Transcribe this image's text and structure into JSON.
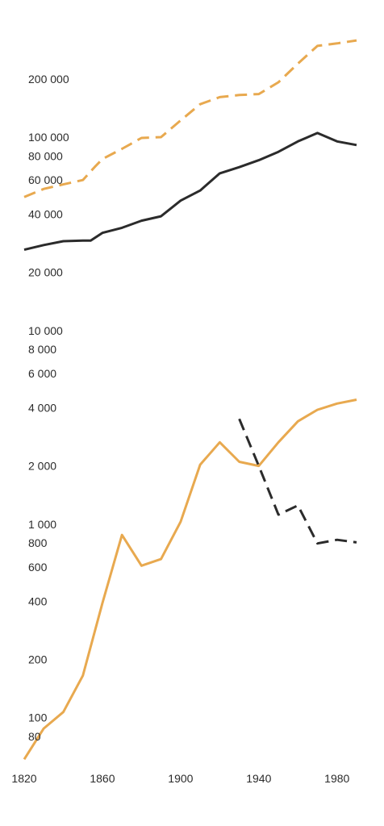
{
  "chart_data": {
    "type": "line",
    "title": "",
    "xlabel": "",
    "ylabel": "",
    "y_scale": "log",
    "xlim": [
      1820,
      1990
    ],
    "ylim": [
      60,
      300000
    ],
    "grid": false,
    "legend": "none",
    "x_ticks": [
      {
        "value": 1820,
        "label": "1820"
      },
      {
        "value": 1860,
        "label": "1860"
      },
      {
        "value": 1900,
        "label": "1900"
      },
      {
        "value": 1940,
        "label": "1940"
      },
      {
        "value": 1980,
        "label": "1980"
      }
    ],
    "y_ticks": [
      {
        "value": 80,
        "label": "80"
      },
      {
        "value": 100,
        "label": "100"
      },
      {
        "value": 200,
        "label": "200"
      },
      {
        "value": 400,
        "label": "400"
      },
      {
        "value": 600,
        "label": "600"
      },
      {
        "value": 800,
        "label": "800"
      },
      {
        "value": 1000,
        "label": "1 000"
      },
      {
        "value": 2000,
        "label": "2 000"
      },
      {
        "value": 4000,
        "label": "4 000"
      },
      {
        "value": 6000,
        "label": "6 000"
      },
      {
        "value": 8000,
        "label": "8 000"
      },
      {
        "value": 10000,
        "label": "10 000"
      },
      {
        "value": 20000,
        "label": "20 000"
      },
      {
        "value": 40000,
        "label": "40 000"
      },
      {
        "value": 60000,
        "label": "60 000"
      },
      {
        "value": 80000,
        "label": "80 000"
      },
      {
        "value": 100000,
        "label": "100 000"
      },
      {
        "value": 200000,
        "label": "200 000"
      }
    ],
    "series": [
      {
        "color": "#e8a94f",
        "dash": "dashed",
        "x": [
          1820,
          1830,
          1840,
          1850,
          1856,
          1860,
          1870,
          1880,
          1890,
          1900,
          1910,
          1920,
          1930,
          1940,
          1950,
          1960,
          1970,
          1980,
          1990
        ],
        "y": [
          49000,
          54000,
          57000,
          60000,
          70000,
          77000,
          87000,
          99000,
          100000,
          122000,
          148000,
          161000,
          165000,
          167000,
          192000,
          240000,
          296000,
          305000,
          316000
        ]
      },
      {
        "color": "#2b2b2b",
        "dash": "solid",
        "x": [
          1820,
          1830,
          1840,
          1850,
          1854,
          1860,
          1870,
          1880,
          1890,
          1900,
          1910,
          1920,
          1930,
          1940,
          1950,
          1960,
          1970,
          1980,
          1990
        ],
        "y": [
          26200,
          27700,
          29000,
          29200,
          29200,
          32000,
          34000,
          37000,
          39000,
          47000,
          53000,
          65000,
          70000,
          76000,
          84000,
          95000,
          105000,
          95000,
          91000
        ]
      },
      {
        "color": "#e8a94f",
        "dash": "solid",
        "x": [
          1820,
          1830,
          1840,
          1850,
          1860,
          1870,
          1880,
          1890,
          1900,
          1910,
          1920,
          1930,
          1940,
          1950,
          1960,
          1970,
          1980,
          1990
        ],
        "y": [
          61,
          88,
          107,
          165,
          390,
          880,
          610,
          660,
          1030,
          2030,
          2650,
          2100,
          2000,
          2650,
          3400,
          3900,
          4200,
          4400
        ]
      },
      {
        "color": "#2b2b2b",
        "dash": "dashed",
        "x": [
          1930,
          1940,
          1950,
          1960,
          1970,
          1980,
          1990
        ],
        "y": [
          3500,
          2000,
          1120,
          1250,
          795,
          830,
          805
        ]
      }
    ]
  }
}
